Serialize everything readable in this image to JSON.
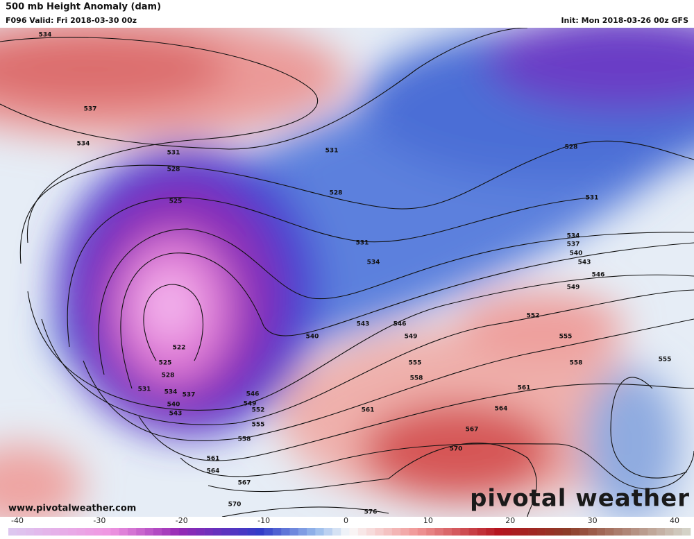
{
  "header": {
    "title": "500 mb Height Anomaly (dam)",
    "valid": "F096 Valid: Fri 2018-03-30 00z",
    "init": "Init: Mon 2018-03-26 00z GFS"
  },
  "contour_labels": [
    534,
    537,
    534,
    531,
    528,
    525,
    528,
    531,
    528,
    531,
    531,
    534,
    534,
    537,
    540,
    543,
    546,
    549,
    552,
    555,
    558,
    555,
    561,
    564,
    567,
    570,
    522,
    525,
    528,
    531,
    534,
    537,
    540,
    543,
    540,
    543,
    546,
    549,
    555,
    558,
    561,
    546,
    549,
    552,
    555,
    558,
    561,
    564,
    567,
    570,
    576
  ],
  "footer": {
    "website": "www.pivotalweather.com",
    "logo": "pivotal weather"
  },
  "colorbar": {
    "ticks": [
      -40,
      -30,
      -20,
      -10,
      0,
      10,
      20,
      30,
      40
    ]
  }
}
